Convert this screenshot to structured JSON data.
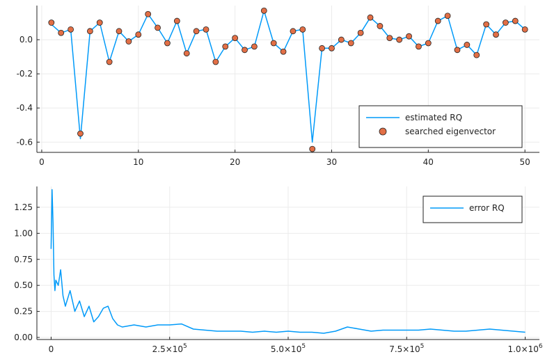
{
  "chart_data": [
    {
      "type": "line",
      "title": "",
      "xlabel": "",
      "ylabel": "",
      "xlim": [
        -0.5,
        51.5
      ],
      "ylim": [
        -0.66,
        0.2
      ],
      "xticks": [
        0,
        10,
        20,
        30,
        40,
        50
      ],
      "xtick_labels": [
        "0",
        "10",
        "20",
        "30",
        "40",
        "50"
      ],
      "yticks": [
        0.0,
        -0.2,
        -0.4,
        -0.6
      ],
      "ytick_labels": [
        "0.0",
        "-0.2",
        "-0.4",
        "-0.6"
      ],
      "grid": true,
      "legend_position": "bottom-right",
      "series": [
        {
          "name": "estimated RQ",
          "style": "line",
          "color": "#009af9",
          "x": [
            1,
            2,
            3,
            4,
            5,
            6,
            7,
            8,
            9,
            10,
            11,
            12,
            13,
            14,
            15,
            16,
            17,
            18,
            19,
            20,
            21,
            22,
            23,
            24,
            25,
            26,
            27,
            28,
            29,
            30,
            31,
            32,
            33,
            34,
            35,
            36,
            37,
            38,
            39,
            40,
            41,
            42,
            43,
            44,
            45,
            46,
            47,
            48,
            49,
            50
          ],
          "y": [
            0.09,
            0.04,
            0.06,
            -0.58,
            0.05,
            0.1,
            -0.13,
            0.05,
            -0.01,
            0.03,
            0.15,
            0.07,
            -0.02,
            0.11,
            -0.08,
            0.05,
            0.06,
            -0.13,
            -0.04,
            0.01,
            -0.06,
            -0.04,
            0.17,
            -0.02,
            -0.07,
            0.05,
            0.06,
            -0.6,
            -0.05,
            -0.05,
            0.0,
            -0.02,
            0.04,
            0.13,
            0.08,
            0.01,
            0.0,
            0.02,
            -0.04,
            -0.02,
            0.11,
            0.14,
            -0.06,
            -0.03,
            -0.09,
            0.09,
            0.03,
            0.1,
            0.11,
            0.06
          ]
        },
        {
          "name": "searched eigenvector",
          "style": "scatter",
          "color": "#e26f46",
          "x": [
            1,
            2,
            3,
            4,
            5,
            6,
            7,
            8,
            9,
            10,
            11,
            12,
            13,
            14,
            15,
            16,
            17,
            18,
            19,
            20,
            21,
            22,
            23,
            24,
            25,
            26,
            27,
            28,
            29,
            30,
            31,
            32,
            33,
            34,
            35,
            36,
            37,
            38,
            39,
            40,
            41,
            42,
            43,
            44,
            45,
            46,
            47,
            48,
            49,
            50
          ],
          "y": [
            0.1,
            0.04,
            0.06,
            -0.55,
            0.05,
            0.1,
            -0.13,
            0.05,
            -0.01,
            0.03,
            0.15,
            0.07,
            -0.02,
            0.11,
            -0.08,
            0.05,
            0.06,
            -0.13,
            -0.04,
            0.01,
            -0.06,
            -0.04,
            0.17,
            -0.02,
            -0.07,
            0.05,
            0.06,
            -0.64,
            -0.05,
            -0.05,
            0.0,
            -0.02,
            0.04,
            0.13,
            0.08,
            0.01,
            0.0,
            0.02,
            -0.04,
            -0.02,
            0.11,
            0.14,
            -0.06,
            -0.03,
            -0.09,
            0.09,
            0.03,
            0.1,
            0.11,
            0.06
          ]
        }
      ]
    },
    {
      "type": "line",
      "title": "",
      "xlabel": "",
      "ylabel": "",
      "xlim": [
        -30000,
        1030000
      ],
      "ylim": [
        -0.02,
        1.45
      ],
      "xticks": [
        0,
        250000,
        500000,
        750000,
        1000000
      ],
      "xtick_labels": [
        {
          "mantissa": "0",
          "exponent": ""
        },
        {
          "mantissa": "2.5×10",
          "exponent": "5"
        },
        {
          "mantissa": "5.0×10",
          "exponent": "5"
        },
        {
          "mantissa": "7.5×10",
          "exponent": "5"
        },
        {
          "mantissa": "1.0×10",
          "exponent": "6"
        }
      ],
      "yticks": [
        0.0,
        0.25,
        0.5,
        0.75,
        1.0,
        1.25
      ],
      "ytick_labels": [
        "0.00",
        "0.25",
        "0.50",
        "0.75",
        "1.00",
        "1.25"
      ],
      "grid": true,
      "legend_position": "top-right",
      "series": [
        {
          "name": "error RQ",
          "style": "line",
          "color": "#009af9",
          "x": [
            0,
            2000,
            4000,
            6000,
            8000,
            10000,
            15000,
            20000,
            25000,
            30000,
            40000,
            50000,
            60000,
            70000,
            80000,
            90000,
            100000,
            110000,
            120000,
            130000,
            140000,
            150000,
            175000,
            200000,
            225000,
            250000,
            275000,
            300000,
            325000,
            350000,
            375000,
            400000,
            425000,
            450000,
            475000,
            500000,
            525000,
            550000,
            575000,
            600000,
            625000,
            650000,
            675000,
            700000,
            725000,
            750000,
            775000,
            800000,
            825000,
            850000,
            875000,
            900000,
            925000,
            950000,
            975000,
            1000000
          ],
          "y": [
            0.85,
            1.42,
            1.1,
            0.6,
            0.45,
            0.55,
            0.5,
            0.65,
            0.4,
            0.3,
            0.45,
            0.25,
            0.35,
            0.2,
            0.3,
            0.15,
            0.2,
            0.28,
            0.3,
            0.18,
            0.12,
            0.1,
            0.12,
            0.1,
            0.12,
            0.12,
            0.13,
            0.08,
            0.07,
            0.06,
            0.06,
            0.06,
            0.05,
            0.06,
            0.05,
            0.06,
            0.05,
            0.05,
            0.04,
            0.06,
            0.1,
            0.08,
            0.06,
            0.07,
            0.07,
            0.07,
            0.07,
            0.08,
            0.07,
            0.06,
            0.06,
            0.07,
            0.08,
            0.07,
            0.06,
            0.05
          ]
        }
      ]
    }
  ]
}
